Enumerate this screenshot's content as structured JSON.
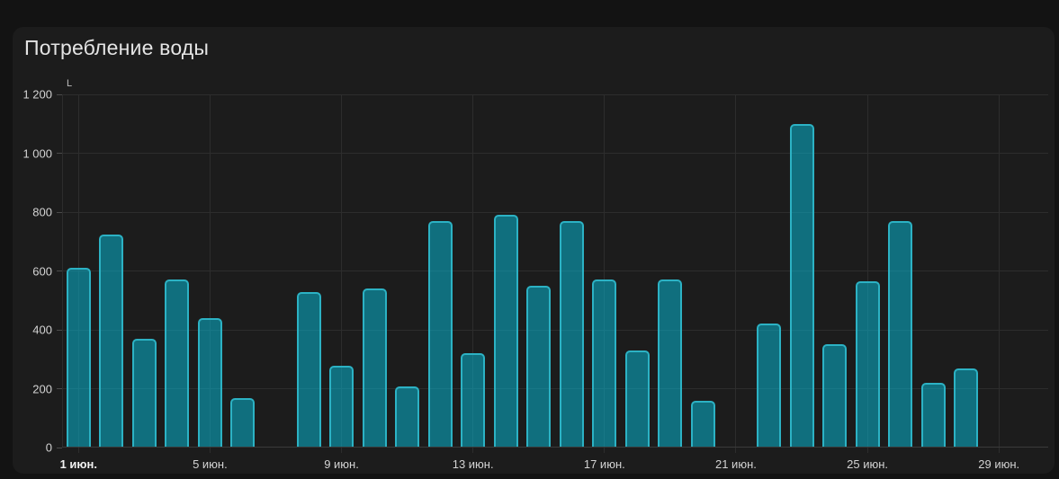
{
  "page": {
    "background": "#131313"
  },
  "card": {
    "background": "#1c1c1c",
    "title": "Потребление воды"
  },
  "chart_data": {
    "type": "bar",
    "title": "Потребление воды",
    "unit": "L",
    "ylabel": "L",
    "xlabel": "",
    "ylim": [
      0,
      1200
    ],
    "grid": true,
    "legend": false,
    "y_ticks": [
      0,
      200,
      400,
      600,
      800,
      1000,
      1200
    ],
    "y_tick_labels": [
      "0",
      "200",
      "400",
      "600",
      "800",
      "1 000",
      "1 200"
    ],
    "x_ticks": [
      {
        "day": 1,
        "label": "1 июн.",
        "bold": true
      },
      {
        "day": 5,
        "label": "5 июн.",
        "bold": false
      },
      {
        "day": 9,
        "label": "9 июн.",
        "bold": false
      },
      {
        "day": 13,
        "label": "13 июн.",
        "bold": false
      },
      {
        "day": 17,
        "label": "17 июн.",
        "bold": false
      },
      {
        "day": 21,
        "label": "21 июн.",
        "bold": false
      },
      {
        "day": 25,
        "label": "25 июн.",
        "bold": false
      },
      {
        "day": 29,
        "label": "29 июн.",
        "bold": false
      }
    ],
    "categories": [
      1,
      2,
      3,
      4,
      5,
      6,
      7,
      8,
      9,
      10,
      11,
      12,
      13,
      14,
      15,
      16,
      17,
      18,
      19,
      20,
      21,
      22,
      23,
      24,
      25,
      26,
      27,
      28,
      29,
      30
    ],
    "values": [
      610,
      725,
      370,
      570,
      440,
      167,
      0,
      528,
      278,
      540,
      209,
      770,
      320,
      790,
      550,
      770,
      570,
      330,
      570,
      160,
      0,
      422,
      1100,
      350,
      565,
      770,
      221,
      268,
      0,
      0
    ],
    "colors": {
      "bar_fill": "rgba(8,180,208,0.55)",
      "bar_border": "#2cb2c4",
      "grid": "#2d2d2d",
      "axis_line": "#3a3a3a",
      "tick": "#4a4a4a",
      "axis_label": "#d3d3d3",
      "title": "#e4e4e4",
      "unit_label": "#bdbdbd"
    }
  }
}
